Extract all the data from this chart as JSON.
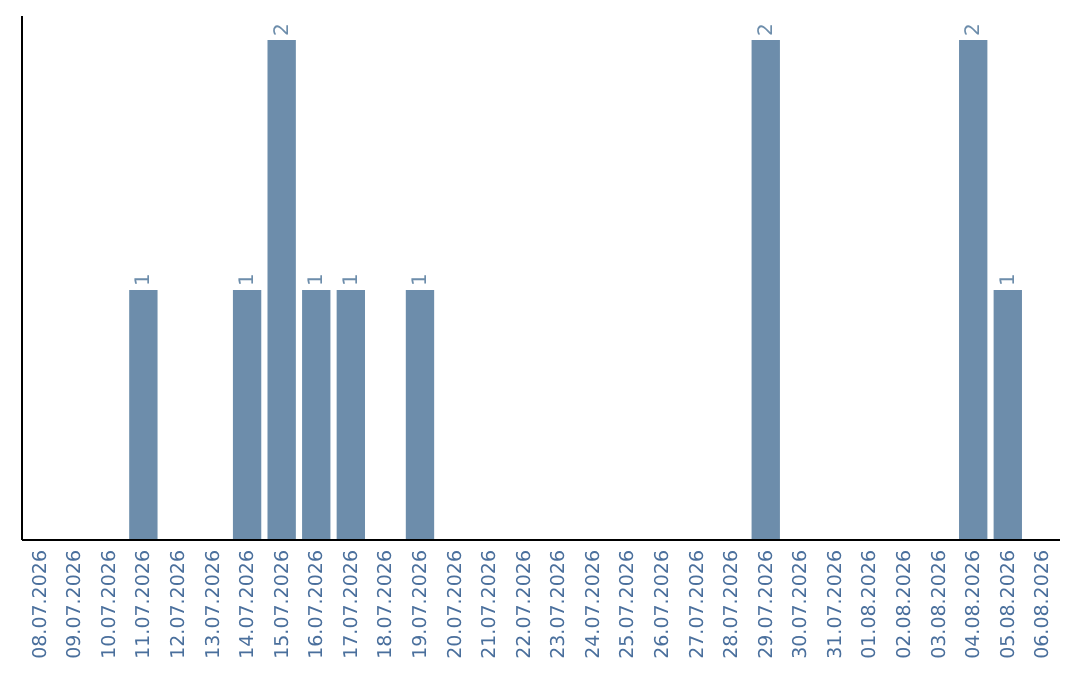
{
  "chart_data": {
    "type": "bar",
    "categories": [
      "08.07.2026",
      "09.07.2026",
      "10.07.2026",
      "11.07.2026",
      "12.07.2026",
      "13.07.2026",
      "14.07.2026",
      "15.07.2026",
      "16.07.2026",
      "17.07.2026",
      "18.07.2026",
      "19.07.2026",
      "20.07.2026",
      "21.07.2026",
      "22.07.2026",
      "23.07.2026",
      "24.07.2026",
      "25.07.2026",
      "26.07.2026",
      "27.07.2026",
      "28.07.2026",
      "29.07.2026",
      "30.07.2026",
      "31.07.2026",
      "01.08.2026",
      "02.08.2026",
      "03.08.2026",
      "04.08.2026",
      "05.08.2026",
      "06.08.2026"
    ],
    "values": [
      0,
      0,
      0,
      1,
      0,
      0,
      1,
      2,
      1,
      1,
      0,
      1,
      0,
      0,
      0,
      0,
      0,
      0,
      0,
      0,
      0,
      2,
      0,
      0,
      0,
      0,
      0,
      2,
      1,
      0
    ],
    "value_labels": [
      null,
      null,
      null,
      "1",
      null,
      null,
      "1",
      "2",
      "1",
      "1",
      null,
      "1",
      null,
      null,
      null,
      null,
      null,
      null,
      null,
      null,
      null,
      "2",
      null,
      null,
      null,
      null,
      null,
      "2",
      "1",
      null
    ],
    "color": "#6d8dab",
    "tick_labels": "x"
  }
}
